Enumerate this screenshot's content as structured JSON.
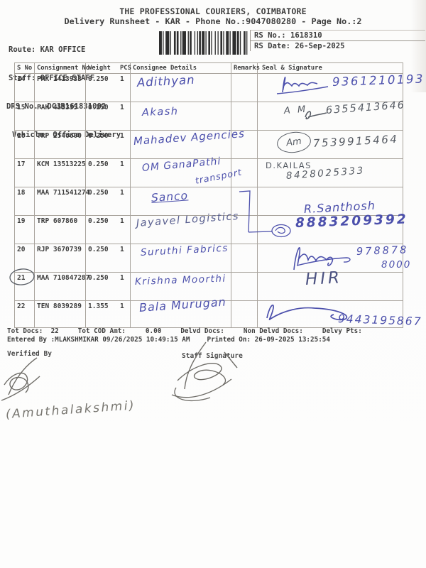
{
  "header": {
    "title": "THE PROFESSIONAL COURIERS, COIMBATORE",
    "subtitle": "Delivery Runsheet - KAR - Phone No.:9047080280 - Page No.:2",
    "route_line": "Route: KAR OFFICE",
    "staff_line": "Staff: OFFICE STAFF",
    "drs_line": "DRS No.: DCJB161831002",
    "vehicle_line": "Vehicle: Office Delivery",
    "rs_no_line": "RS No.: 1618310",
    "rs_date_line": "RS Date: 26-Sep-2025"
  },
  "table": {
    "columns": [
      "S No",
      "Consignment No",
      "Weight",
      "PCS",
      "Consignee Details",
      "Remarks",
      "Seal & Signature"
    ],
    "rows": [
      {
        "s_no": "14",
        "consignment_no": "PMK 1413933",
        "weight": "0.250",
        "pcs": "1"
      },
      {
        "s_no": "15",
        "consignment_no": "PAK 453335",
        "weight": "0.250",
        "pcs": "1"
      },
      {
        "s_no": "16",
        "consignment_no": "TRP 2546600",
        "weight": "0.250",
        "pcs": "1"
      },
      {
        "s_no": "17",
        "consignment_no": "KCM 13513225",
        "weight": "0.250",
        "pcs": "1"
      },
      {
        "s_no": "18",
        "consignment_no": "MAA 711541274",
        "weight": "0.250",
        "pcs": "1"
      },
      {
        "s_no": "19",
        "consignment_no": "TRP 607860",
        "weight": "0.250",
        "pcs": "1"
      },
      {
        "s_no": "20",
        "consignment_no": "RJP 3670739",
        "weight": "0.250",
        "pcs": "1"
      },
      {
        "s_no": "21",
        "consignment_no": "MAA 710847287",
        "weight": "0.250",
        "pcs": "1"
      },
      {
        "s_no": "22",
        "consignment_no": "TEN 8039289",
        "weight": "1.355",
        "pcs": "1"
      }
    ]
  },
  "handwriting": {
    "consignee_14": "Adithyan",
    "phone_14": "9361210193",
    "consignee_15": "Akash",
    "initials_15": "A M",
    "phone_15": "6355413646",
    "consignee_16": "Mahadev Agencies",
    "initials_16": "Am",
    "phone_16": "7539915464",
    "consignee_17": "OM GanaPathi",
    "consignee_17b": "transport",
    "name_17": "D.KAILAS",
    "phone_17": "8428025333",
    "consignee_18": "Sanco",
    "consignee_19": "Jayavel Logistics",
    "name_19": "R.Santhosh",
    "phone_19": "8883209392",
    "consignee_20": "Suruthi Fabrics",
    "phone_20a": "978878",
    "phone_20b": "8000",
    "consignee_21": "Krishna Moorthi",
    "name_21": "HIR",
    "consignee_22": "Bala Murugan",
    "phone_22": "9443195867",
    "note_bottom": "(Amuthalakshmi)"
  },
  "footer": {
    "totals_segments": [
      "Tot Docs:  22",
      "Tot COD Amt:     0.00",
      "Delvd Docs:",
      "Non Delvd Docs:",
      "Delvy Pts:"
    ],
    "entered_line": "Entered By :MLAKSHMIKAR 09/26/2025 10:49:15 AM",
    "printed_line": "Printed On: 26-09-2025 13:25:54",
    "verified_by_label": "Verified By",
    "staff_signature_label": "Staff Signature"
  },
  "colors": {
    "ink_blue": "#4c50ac",
    "ink_dark": "#565b63",
    "print_black": "#3d3d3d",
    "table_line": "#a9a49d"
  }
}
